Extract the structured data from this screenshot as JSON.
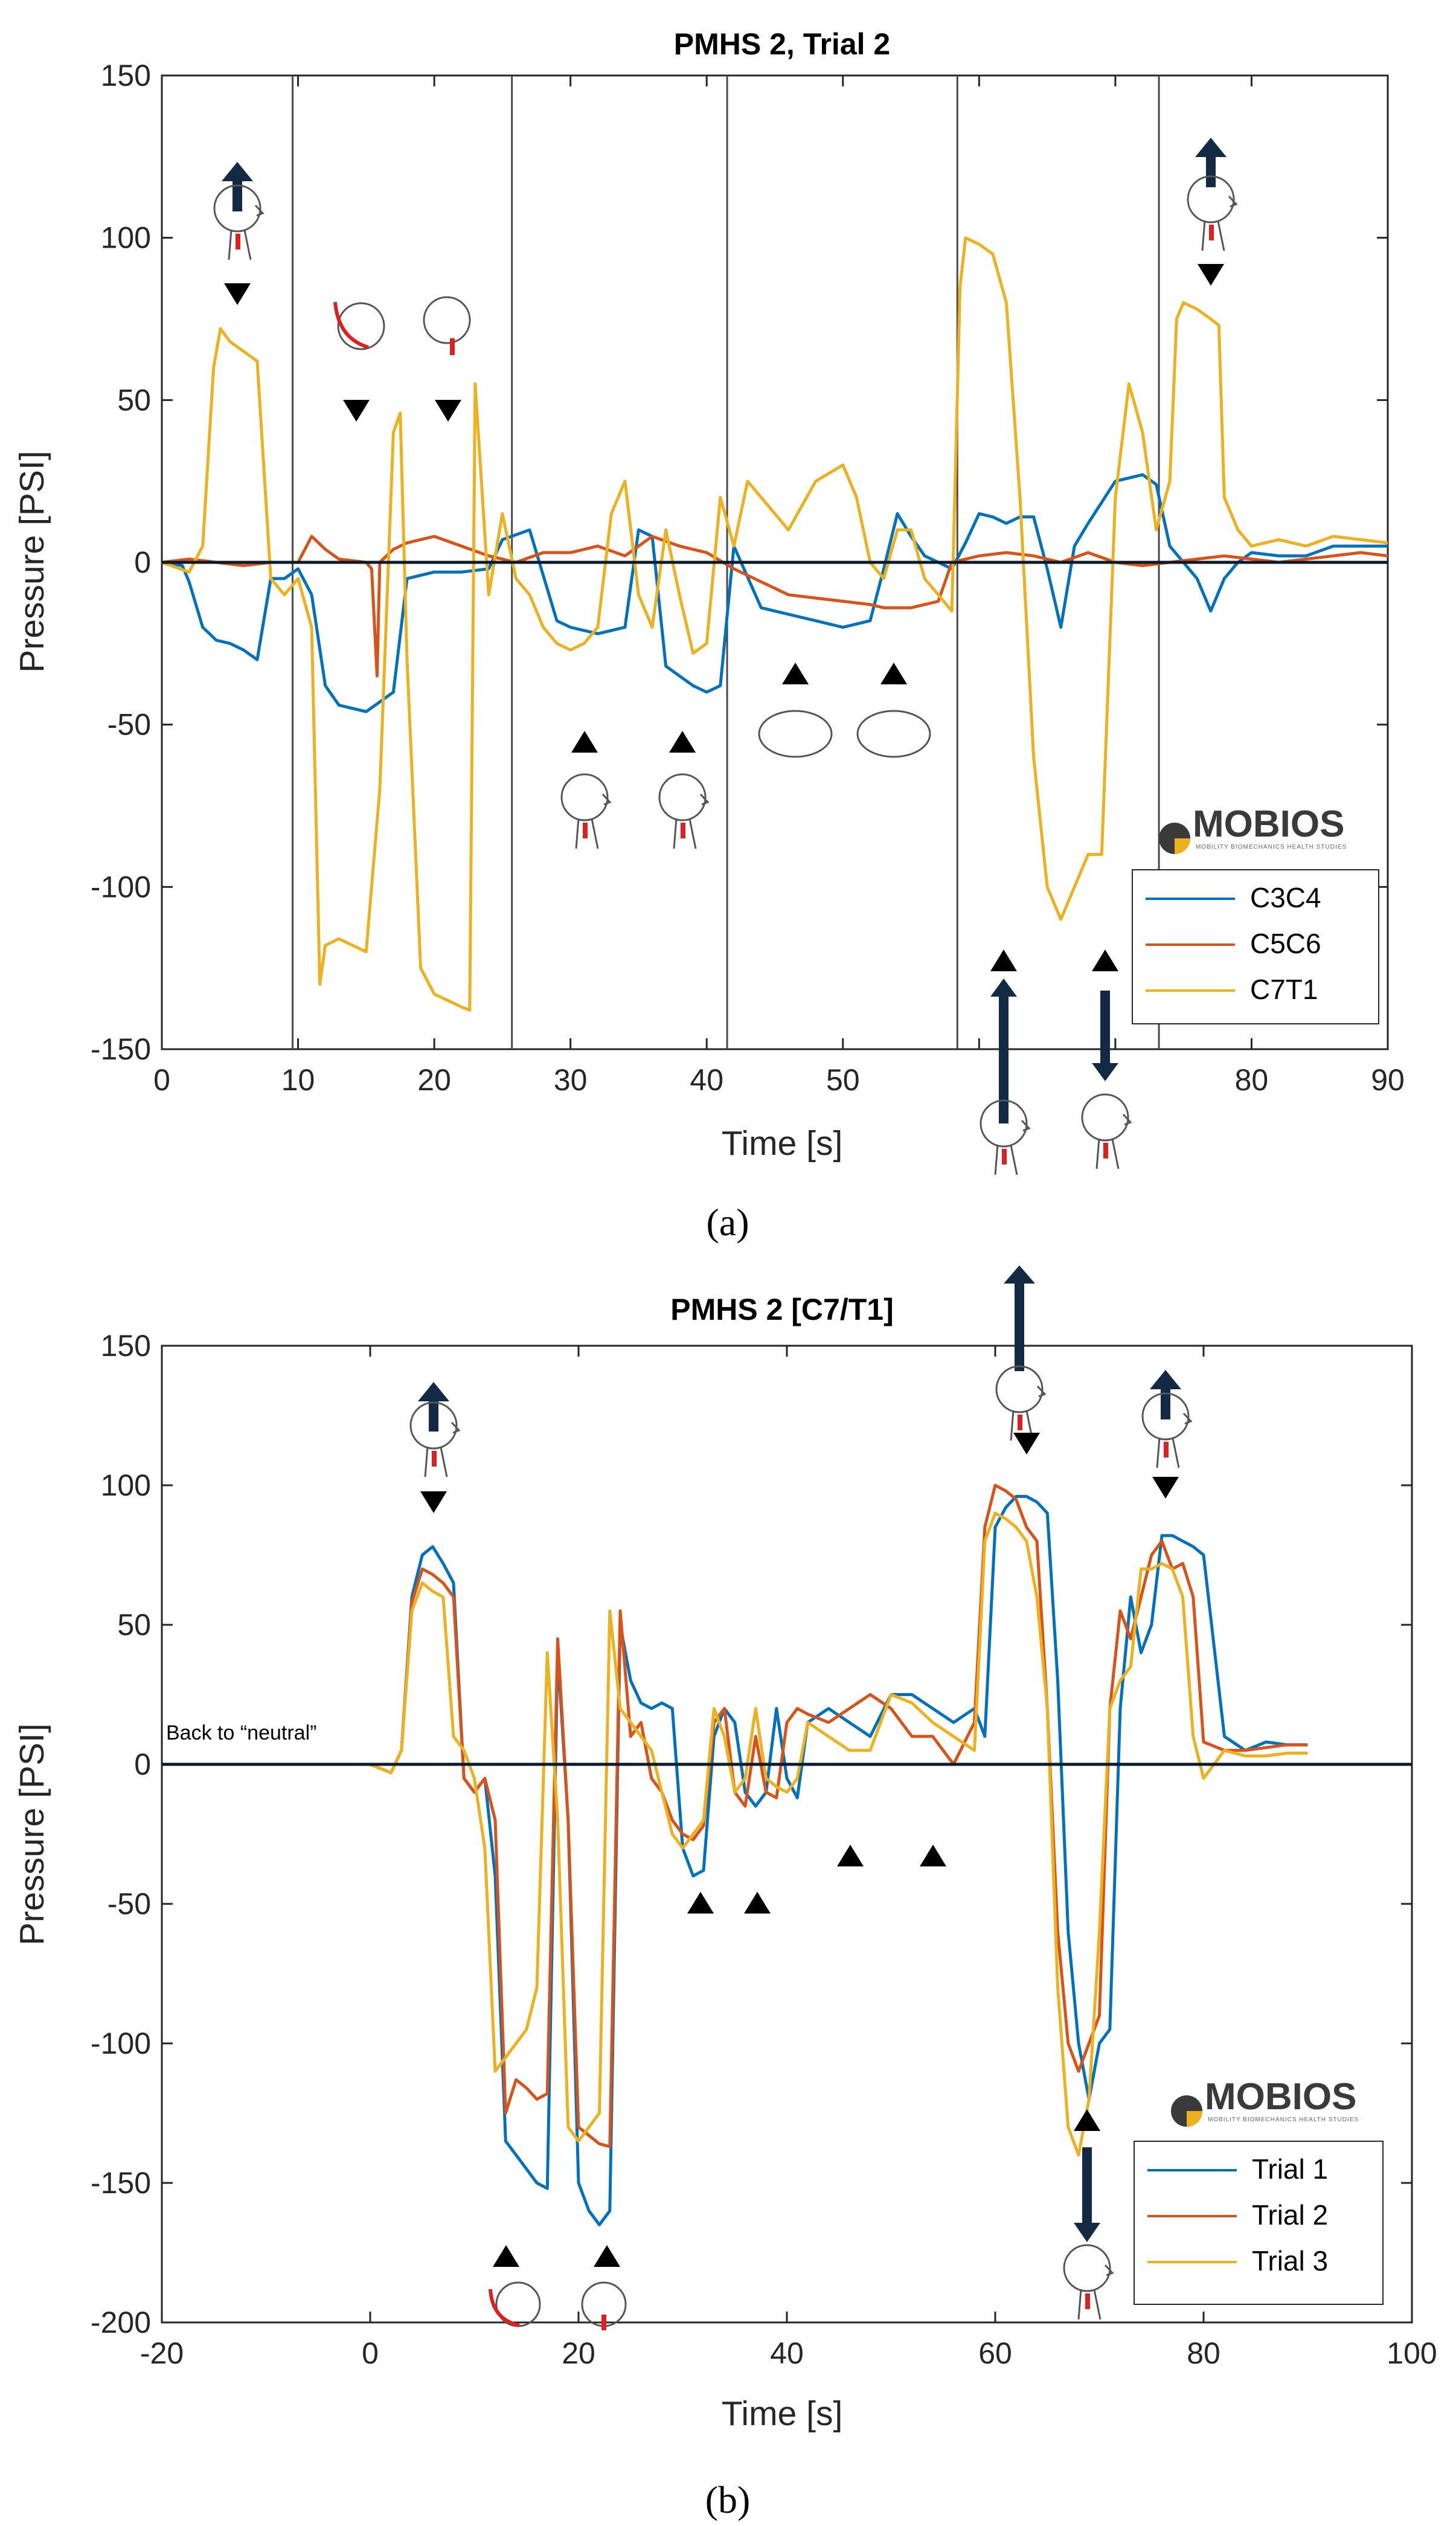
{
  "chart_data": [
    {
      "panel": "(a)",
      "type": "line",
      "title": "PMHS 2, Trial 2",
      "xlabel": "Time [s]",
      "ylabel": "Pressure [PSI]",
      "xlim": [
        0,
        90
      ],
      "ylim": [
        -150,
        150
      ],
      "xticks": [
        0,
        10,
        20,
        30,
        40,
        50,
        60,
        70,
        80,
        90
      ],
      "xtick_labels": [
        "0",
        "10",
        "20",
        "30",
        "40",
        "50",
        "",
        "",
        "80",
        "90"
      ],
      "yticks": [
        -150,
        -100,
        -50,
        0,
        50,
        100,
        150
      ],
      "vlines": [
        9.6,
        25.7,
        41.5,
        58.4,
        73.2
      ],
      "hline": 0,
      "legend": [
        "C3C4",
        "C5C6",
        "C7T1"
      ],
      "logo": {
        "name": "MOBIOS",
        "subtitle": "MOBILITY BIOMECHANICS HEALTH STUDIES"
      },
      "series": [
        {
          "name": "C3C4",
          "color": "#0072BD",
          "x": [
            0,
            1.5,
            2,
            3,
            4,
            5,
            6,
            7,
            8,
            9,
            10,
            11,
            12,
            13,
            15,
            16,
            17,
            18,
            20,
            22,
            24,
            25,
            27,
            29,
            30,
            32,
            34,
            35,
            36,
            37,
            39,
            40,
            41,
            42,
            44,
            46,
            48,
            50,
            52,
            53,
            54,
            55,
            56,
            57,
            58,
            59,
            60,
            61,
            62,
            63,
            64,
            65,
            66,
            67,
            68,
            70,
            72,
            73,
            74,
            76,
            77,
            78,
            79,
            80,
            82,
            84,
            86,
            88,
            90
          ],
          "y": [
            0,
            -1,
            -6,
            -20,
            -24,
            -25,
            -27,
            -30,
            -5,
            -5,
            -2,
            -10,
            -38,
            -44,
            -46,
            -43,
            -40,
            -5,
            -3,
            -3,
            -2,
            7,
            10,
            -18,
            -20,
            -22,
            -20,
            10,
            8,
            -32,
            -38,
            -40,
            -38,
            5,
            -14,
            -16,
            -18,
            -20,
            -18,
            -2,
            15,
            8,
            2,
            0,
            -2,
            6,
            15,
            14,
            12,
            14,
            14,
            -2,
            -20,
            5,
            12,
            25,
            27,
            24,
            5,
            -5,
            -15,
            -5,
            0,
            3,
            2,
            2,
            5,
            5,
            5
          ]
        },
        {
          "name": "C5C6",
          "color": "#D95319",
          "x": [
            0,
            2,
            4,
            6,
            8,
            10,
            11,
            12,
            13,
            15,
            15.4,
            15.8,
            16,
            17,
            18,
            20,
            22,
            24,
            26,
            28,
            30,
            32,
            34,
            36,
            38,
            40,
            42,
            44,
            46,
            48,
            50,
            52,
            53,
            54,
            55,
            56,
            57,
            58,
            60,
            62,
            64,
            66,
            68,
            70,
            72,
            74,
            76,
            78,
            80,
            82,
            84,
            86,
            88,
            90
          ],
          "y": [
            0,
            1,
            0,
            -1,
            0,
            0,
            8,
            4,
            1,
            0,
            -2,
            -35,
            0,
            4,
            6,
            8,
            5,
            2,
            0,
            3,
            3,
            5,
            2,
            8,
            5,
            3,
            -2,
            -6,
            -10,
            -11,
            -12,
            -13,
            -14,
            -14,
            -14,
            -13,
            -12,
            0,
            2,
            3,
            2,
            0,
            3,
            0,
            -1,
            0,
            1,
            2,
            1,
            0,
            1,
            2,
            3,
            2
          ]
        },
        {
          "name": "C7T1",
          "color": "#EDB120",
          "x": [
            0,
            2,
            3,
            3.8,
            4.3,
            5,
            6,
            7,
            8,
            9,
            10,
            11,
            11.6,
            12,
            13,
            14,
            15,
            16,
            17,
            17.5,
            18,
            19,
            20,
            21,
            22,
            22.6,
            23,
            24,
            25,
            26,
            27,
            28,
            29,
            30,
            31,
            32,
            33,
            34,
            35,
            36,
            37,
            38,
            39,
            40,
            41,
            42,
            43,
            44,
            46,
            48,
            50,
            51,
            52,
            53,
            54,
            55,
            56,
            57,
            58,
            58.6,
            59,
            60,
            61,
            62,
            63,
            64,
            65,
            66,
            67,
            68,
            69,
            70,
            71,
            72,
            73,
            74,
            74.5,
            75,
            76,
            77,
            77.6,
            78,
            79,
            80,
            82,
            84,
            86,
            88,
            90
          ],
          "y": [
            0,
            -3,
            5,
            60,
            72,
            68,
            65,
            62,
            -5,
            -10,
            -5,
            -20,
            -130,
            -118,
            -116,
            -118,
            -120,
            -70,
            40,
            46,
            -30,
            -125,
            -133,
            -135,
            -137,
            -138,
            55,
            -10,
            15,
            -5,
            -10,
            -20,
            -25,
            -27,
            -25,
            -20,
            15,
            25,
            -10,
            -20,
            10,
            -10,
            -28,
            -25,
            20,
            5,
            25,
            20,
            10,
            25,
            30,
            20,
            0,
            -5,
            10,
            10,
            -5,
            -10,
            -15,
            85,
            100,
            98,
            95,
            80,
            20,
            -60,
            -100,
            -110,
            -100,
            -90,
            -90,
            20,
            55,
            40,
            10,
            25,
            75,
            80,
            78,
            75,
            73,
            20,
            10,
            5,
            7,
            5,
            8,
            7,
            6
          ]
        }
      ]
    },
    {
      "panel": "(b)",
      "type": "line",
      "title": "PMHS 2 [C7/T1]",
      "xlabel": "Time [s]",
      "ylabel": "Pressure [PSI]",
      "xlim": [
        -20,
        100
      ],
      "ylim": [
        -200,
        150
      ],
      "xticks": [
        -20,
        0,
        20,
        40,
        60,
        80,
        100
      ],
      "xtick_labels": [
        "-20",
        "0",
        "20",
        "40",
        "60",
        "80",
        "100"
      ],
      "yticks": [
        -200,
        -150,
        -100,
        -50,
        0,
        50,
        100,
        150
      ],
      "hline": 0,
      "annotation": "Back to “neutral”",
      "legend": [
        "Trial 1",
        "Trial 2",
        "Trial 3"
      ],
      "logo": {
        "name": "MOBIOS",
        "subtitle": "MOBILITY BIOMECHANICS HEALTH STUDIES"
      },
      "series": [
        {
          "name": "Trial 1",
          "color": "#0072BD",
          "x": [
            0,
            2,
            3,
            4,
            5,
            6,
            7,
            8,
            9,
            10,
            11,
            12,
            13,
            14,
            15,
            16,
            17,
            18,
            19,
            20,
            21,
            22,
            23,
            24,
            25,
            26,
            27,
            28,
            29,
            30,
            31,
            32,
            33,
            34,
            35,
            36,
            37,
            38,
            39,
            40,
            41,
            42,
            44,
            46,
            48,
            50,
            52,
            54,
            56,
            58,
            59,
            60,
            61,
            62,
            63,
            64,
            65,
            66,
            67,
            68,
            69,
            70,
            71,
            72,
            73,
            74,
            75,
            76,
            77,
            78,
            79,
            80,
            82,
            84,
            86,
            88,
            90
          ],
          "y": [
            0,
            -3,
            5,
            60,
            75,
            78,
            72,
            65,
            -5,
            -10,
            -5,
            -40,
            -135,
            -140,
            -145,
            -150,
            -152,
            40,
            -20,
            -150,
            -160,
            -165,
            -160,
            50,
            30,
            22,
            20,
            22,
            20,
            -30,
            -40,
            -38,
            10,
            20,
            15,
            -10,
            -15,
            -10,
            20,
            -5,
            -12,
            15,
            20,
            15,
            10,
            25,
            25,
            20,
            15,
            20,
            10,
            85,
            92,
            96,
            96,
            94,
            90,
            30,
            -60,
            -100,
            -120,
            -100,
            -95,
            20,
            60,
            40,
            50,
            82,
            82,
            80,
            78,
            75,
            10,
            5,
            8,
            7,
            7
          ]
        },
        {
          "name": "Trial 2",
          "color": "#D95319",
          "x": [
            0,
            2,
            3,
            4,
            5,
            6,
            7,
            8,
            9,
            10,
            11,
            12,
            13,
            14,
            15,
            16,
            17,
            18,
            19,
            20,
            21,
            22,
            23,
            24,
            25,
            26,
            27,
            28,
            29,
            30,
            31,
            32,
            33,
            34,
            35,
            36,
            37,
            38,
            39,
            40,
            41,
            42,
            44,
            46,
            48,
            50,
            52,
            54,
            56,
            58,
            59,
            60,
            61,
            62,
            63,
            64,
            65,
            66,
            67,
            68,
            69,
            70,
            71,
            72,
            73,
            74,
            75,
            76,
            77,
            78,
            79,
            80,
            82,
            84,
            86,
            88,
            90
          ],
          "y": [
            0,
            -3,
            5,
            58,
            70,
            68,
            65,
            60,
            -5,
            -10,
            -5,
            -20,
            -125,
            -113,
            -116,
            -120,
            -118,
            45,
            -20,
            -130,
            -133,
            -136,
            -137,
            55,
            10,
            15,
            -5,
            -10,
            -20,
            -25,
            -27,
            -22,
            15,
            20,
            -10,
            -15,
            10,
            -10,
            -12,
            15,
            20,
            18,
            15,
            20,
            25,
            20,
            10,
            10,
            0,
            15,
            85,
            100,
            98,
            95,
            85,
            80,
            20,
            -60,
            -100,
            -110,
            -100,
            -90,
            20,
            55,
            45,
            60,
            75,
            80,
            70,
            72,
            60,
            8,
            5,
            5,
            6,
            7,
            7
          ]
        },
        {
          "name": "Trial 3",
          "color": "#EDB120",
          "x": [
            0,
            2,
            3,
            4,
            5,
            6,
            7,
            8,
            9,
            10,
            11,
            12,
            13,
            14,
            15,
            16,
            17,
            18,
            19,
            20,
            21,
            22,
            23,
            24,
            25,
            26,
            27,
            28,
            29,
            30,
            31,
            32,
            33,
            34,
            35,
            36,
            37,
            38,
            39,
            40,
            41,
            42,
            44,
            46,
            48,
            50,
            52,
            54,
            56,
            58,
            59,
            60,
            61,
            62,
            63,
            64,
            65,
            66,
            67,
            68,
            69,
            70,
            71,
            72,
            73,
            74,
            75,
            76,
            77,
            78,
            79,
            80,
            82,
            84,
            86,
            88,
            90
          ],
          "y": [
            0,
            -3,
            5,
            55,
            65,
            62,
            60,
            10,
            5,
            -5,
            -30,
            -110,
            -105,
            -100,
            -95,
            -80,
            40,
            -20,
            -130,
            -135,
            -130,
            -125,
            55,
            20,
            15,
            10,
            5,
            -10,
            -25,
            -30,
            -25,
            -20,
            20,
            10,
            -10,
            -5,
            20,
            -5,
            -8,
            -10,
            -5,
            15,
            10,
            5,
            5,
            25,
            22,
            15,
            10,
            5,
            80,
            90,
            88,
            85,
            80,
            60,
            20,
            -80,
            -130,
            -140,
            -120,
            -60,
            20,
            30,
            35,
            70,
            70,
            72,
            70,
            60,
            10,
            -5,
            5,
            3,
            3,
            4,
            4
          ]
        }
      ]
    }
  ]
}
